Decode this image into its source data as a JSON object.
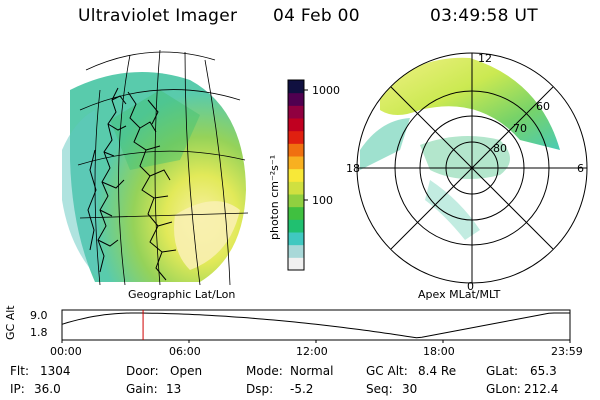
{
  "header": {
    "instrument": "Ultraviolet Imager",
    "date": "04 Feb 00",
    "time": "03:49:58 UT"
  },
  "colorbar": {
    "unit_label": "photon cm⁻²s⁻¹",
    "tick_1000": "1000",
    "tick_100": "100",
    "colors": [
      "#f0f0f0",
      "#a8d8d8",
      "#40c8c0",
      "#20c070",
      "#40c040",
      "#90d040",
      "#d0e040",
      "#f8e838",
      "#f8b020",
      "#f07010",
      "#e02010",
      "#c00020",
      "#900040",
      "#500050",
      "#101040"
    ]
  },
  "left_panel": {
    "label": "Geographic Lat/Lon"
  },
  "right_panel": {
    "label": "Apex MLat/MLT",
    "mlt_12": "12",
    "mlt_18": "18",
    "mlt_6": "6",
    "mlt_0": "0",
    "lat_60": "60",
    "lat_70": "70",
    "lat_80": "80"
  },
  "altitude_plot": {
    "ylabel": "GC Alt",
    "y_top": "9.0",
    "y_bottom": "1.8",
    "x_ticks": [
      "00:00",
      "06:00",
      "12:00",
      "18:00",
      "23:59"
    ],
    "current_time_hours": 3.83,
    "min_time_hours": 16.8
  },
  "info": {
    "flt_label": "Flt:",
    "flt_value": "1304",
    "ip_label": "IP:",
    "ip_value": "36.0",
    "door_label": "Door:",
    "door_value": "Open",
    "gain_label": "Gain:",
    "gain_value": "13",
    "mode_label": "Mode:",
    "mode_value": "Normal",
    "dsp_label": "Dsp:",
    "dsp_value": "-5.2",
    "gcalt_label": "GC Alt:",
    "gcalt_value": "8.4 Re",
    "seq_label": "Seq:",
    "seq_value": "30",
    "glat_label": "GLat:",
    "glat_value": "65.3",
    "glon_label": "GLon:",
    "glon_value": "212.4"
  }
}
